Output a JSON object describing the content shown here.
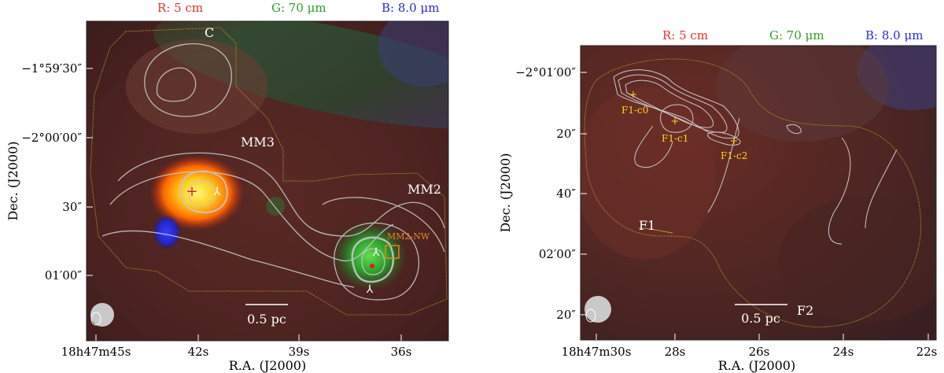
{
  "left_panel": {
    "channel_labels": {
      "r": "R: 5 cm",
      "g": "G: 70 μm",
      "b": "B: 8.0 μm"
    },
    "colors": {
      "r": "#e8312b",
      "g": "#2e9e2e",
      "b": "#2a2ad6"
    },
    "y_axis_label": "Dec. (J2000)",
    "x_axis_label": "R.A. (J2000)",
    "y_ticks": [
      "−1°59′30″",
      "−2°00′00″",
      "30″",
      "01′00″"
    ],
    "x_ticks": [
      "18h47m45s",
      "42s",
      "39s",
      "36s"
    ],
    "region_labels": {
      "c": "C",
      "mm3": "MM3",
      "mm2": "MM2",
      "mm2nw": "MM2-NW"
    },
    "scale_bar": "0.5 pc"
  },
  "right_panel": {
    "channel_labels": {
      "r": "R: 5 cm",
      "g": "G: 70 μm",
      "b": "B: 8.0 μm"
    },
    "y_axis_label": "Dec. (J2000)",
    "x_axis_label": "R.A. (J2000)",
    "y_ticks": [
      "−2°01′00″",
      "20″",
      "40″",
      "02′00″",
      "20″"
    ],
    "x_ticks": [
      "18h47m30s",
      "28s",
      "26s",
      "24s",
      "22s"
    ],
    "region_labels": {
      "f1": "F1",
      "f2": "F2",
      "c0": "F1-c0",
      "c1": "F1-c1",
      "c2": "F1-c2"
    },
    "scale_bar": "0.5 pc"
  }
}
